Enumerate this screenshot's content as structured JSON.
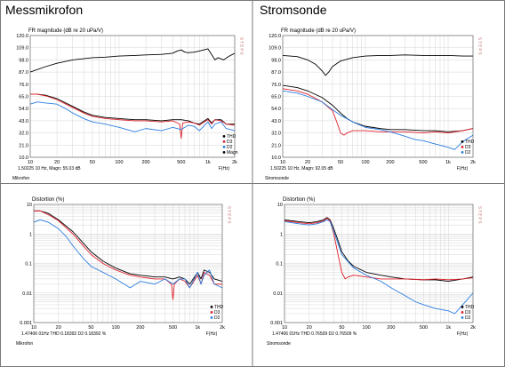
{
  "panel_titles": [
    "Messmikrofon",
    "Stromsonde"
  ],
  "colors": {
    "THD": "#000000",
    "D3": "#e0202a",
    "D2": "#2a7de0",
    "Magn": "#000000",
    "steps": "#c06060"
  },
  "chart_data": [
    {
      "type": "line",
      "title": "FR magnitude (dB re 20 uPa/V)",
      "xlabel": "F(Hz)",
      "ylabel": "",
      "xscale": "log",
      "xlim": [
        10,
        2000
      ],
      "ylim": [
        10,
        120
      ],
      "xticks": [
        10,
        20,
        50,
        100,
        200,
        500,
        1000,
        2000
      ],
      "xtick_labels": [
        "10",
        "20",
        "50",
        "100",
        "200",
        "500",
        "1k",
        "2k"
      ],
      "yticks": [
        10,
        21.0,
        32.0,
        43.0,
        54.0,
        65.0,
        76.0,
        87.0,
        98.0,
        109.0,
        120.0
      ],
      "ytick_labels": [
        "10.0",
        "21.0",
        "32.0",
        "43.0",
        "54.0",
        "65.0",
        "76.0",
        "87.0",
        "98.0",
        "109.0",
        "120.0"
      ],
      "cursor_readout": "1.50225 10 Hz, Magn: 55.03 dB",
      "footer": "Mikrofon",
      "steps_label": "S T E P S",
      "legend": [
        "THD",
        "D3",
        "D2",
        "Magn"
      ],
      "series": [
        {
          "name": "Magn",
          "x": [
            10,
            15,
            20,
            30,
            50,
            70,
            100,
            150,
            200,
            300,
            400,
            450,
            500,
            550,
            600,
            700,
            800,
            1000,
            1200,
            1300,
            1500,
            1700,
            2000
          ],
          "y": [
            87,
            92,
            95,
            98,
            100,
            100.5,
            101.5,
            102,
            102.5,
            103,
            104,
            106,
            107,
            105,
            104.5,
            105,
            106,
            108,
            98,
            100,
            98,
            101,
            104
          ]
        },
        {
          "name": "THD",
          "x": [
            10,
            12,
            15,
            20,
            30,
            40,
            50,
            70,
            100,
            150,
            200,
            300,
            400,
            500,
            600,
            700,
            800,
            1000,
            1100,
            1200,
            1400,
            1600,
            2000
          ],
          "y": [
            67,
            67,
            66,
            63,
            56,
            51,
            48,
            46,
            45,
            44,
            44,
            43,
            44,
            44,
            43,
            41,
            40,
            45,
            41,
            44,
            44,
            40,
            40
          ]
        },
        {
          "name": "D3",
          "x": [
            10,
            12,
            15,
            20,
            30,
            40,
            50,
            70,
            100,
            150,
            200,
            300,
            400,
            480,
            500,
            520,
            600,
            700,
            800,
            1000,
            1100,
            1200,
            1400,
            1600,
            2000
          ],
          "y": [
            67,
            67,
            65.5,
            62,
            55,
            50,
            47,
            45,
            44,
            43,
            43,
            42,
            43,
            40,
            27,
            41,
            42,
            41,
            39,
            44,
            40,
            44,
            43,
            40,
            39
          ]
        },
        {
          "name": "D2",
          "x": [
            10,
            12,
            15,
            20,
            25,
            30,
            40,
            50,
            70,
            100,
            150,
            200,
            300,
            400,
            500,
            600,
            700,
            800,
            1000,
            1100,
            1200,
            1400,
            1600,
            2000
          ],
          "y": [
            58,
            60,
            59,
            58,
            54,
            50,
            45,
            42,
            40,
            37,
            33,
            36,
            34,
            37,
            35,
            39,
            38,
            34,
            42,
            36,
            40,
            42,
            36,
            34
          ]
        }
      ]
    },
    {
      "type": "line",
      "title": "FR magnitude (dB re 20 uPa/V)",
      "xlabel": "F(Hz)",
      "ylabel": "",
      "xscale": "log",
      "xlim": [
        10,
        2000
      ],
      "ylim": [
        10,
        120
      ],
      "xticks": [
        10,
        20,
        50,
        100,
        200,
        500,
        1000,
        2000
      ],
      "xtick_labels": [
        "10",
        "20",
        "50",
        "100",
        "200",
        "500",
        "1k",
        "2k"
      ],
      "yticks": [
        10,
        21.0,
        32.0,
        43.0,
        54.0,
        65.0,
        76.0,
        87.0,
        98.0,
        109.0,
        120.0
      ],
      "ytick_labels": [
        "10.0",
        "21.0",
        "32.0",
        "43.0",
        "54.0",
        "65.0",
        "76.0",
        "87.0",
        "98.0",
        "109.0",
        "120.0"
      ],
      "cursor_readout": "1.50225 10 Hz, Magn: 92.05 dB",
      "footer": "Stromsonde",
      "steps_label": "S T E P S",
      "legend": [
        "THD",
        "D3",
        "D2"
      ],
      "series": [
        {
          "name": "Magn",
          "x": [
            10,
            15,
            20,
            25,
            30,
            33,
            36,
            40,
            50,
            70,
            100,
            150,
            200,
            300,
            500,
            700,
            1000,
            1500,
            2000
          ],
          "y": [
            102,
            101,
            98,
            94,
            88,
            84,
            87,
            92,
            97,
            100,
            101.5,
            102,
            102,
            102.5,
            102,
            102,
            102,
            101.5,
            101.5
          ]
        },
        {
          "name": "THD",
          "x": [
            10,
            15,
            20,
            30,
            40,
            50,
            60,
            70,
            100,
            150,
            200,
            300,
            500,
            700,
            1000,
            1500,
            2000
          ],
          "y": [
            75,
            73,
            70,
            64,
            57,
            50,
            45,
            42,
            38,
            36,
            35,
            35,
            34,
            34,
            33,
            34,
            36
          ]
        },
        {
          "name": "D3",
          "x": [
            10,
            15,
            20,
            30,
            40,
            45,
            50,
            55,
            60,
            70,
            100,
            150,
            200,
            300,
            500,
            700,
            1000,
            1500,
            2000
          ],
          "y": [
            72,
            70,
            67,
            60,
            52,
            42,
            32,
            30,
            32,
            34,
            34,
            33,
            33,
            33,
            32,
            33,
            32,
            34,
            36
          ]
        },
        {
          "name": "D2",
          "x": [
            10,
            15,
            20,
            30,
            40,
            50,
            70,
            100,
            150,
            200,
            300,
            400,
            500,
            700,
            1000,
            1200,
            1500,
            2000
          ],
          "y": [
            70,
            68,
            65,
            60,
            53,
            48,
            42,
            37,
            35,
            33,
            29,
            26,
            25,
            22,
            19,
            17,
            24,
            30
          ]
        }
      ]
    },
    {
      "type": "line",
      "title": "Distortion (%)",
      "xlabel": "F(Hz)",
      "ylabel": "",
      "xscale": "log",
      "yscale": "log",
      "xlim": [
        10,
        2000
      ],
      "ylim": [
        0.001,
        10
      ],
      "xticks": [
        10,
        20,
        50,
        100,
        200,
        500,
        1000,
        2000
      ],
      "xtick_labels": [
        "10",
        "20",
        "50",
        "100",
        "200",
        "500",
        "1k",
        "2k"
      ],
      "yticks": [
        0.001,
        0.01,
        0.1,
        1,
        10
      ],
      "ytick_labels": [
        "0.001",
        "0.01",
        "0.1",
        "1",
        "10"
      ],
      "cursor_readout": "1.47406 01Hz  THD 0.18392  D2 0.18392  %",
      "footer": "Mikrofon",
      "steps_label": "S T E P S",
      "legend": [
        "THD",
        "D3",
        "D2"
      ],
      "series": [
        {
          "name": "THD",
          "x": [
            10,
            12,
            15,
            20,
            30,
            40,
            50,
            70,
            100,
            150,
            200,
            300,
            400,
            500,
            600,
            700,
            800,
            1000,
            1100,
            1200,
            1400,
            1600,
            2000
          ],
          "y": [
            6,
            6,
            5,
            3,
            1.2,
            0.5,
            0.25,
            0.12,
            0.07,
            0.045,
            0.04,
            0.035,
            0.035,
            0.03,
            0.035,
            0.03,
            0.02,
            0.05,
            0.03,
            0.06,
            0.05,
            0.03,
            0.025
          ]
        },
        {
          "name": "D3",
          "x": [
            10,
            12,
            15,
            20,
            30,
            40,
            50,
            70,
            100,
            150,
            200,
            300,
            400,
            480,
            500,
            520,
            600,
            700,
            800,
            1000,
            1100,
            1200,
            1400,
            1600,
            2000
          ],
          "y": [
            6,
            6,
            4.5,
            2.8,
            1.0,
            0.4,
            0.2,
            0.1,
            0.06,
            0.04,
            0.035,
            0.03,
            0.03,
            0.02,
            0.006,
            0.02,
            0.03,
            0.025,
            0.015,
            0.04,
            0.02,
            0.05,
            0.04,
            0.02,
            0.02
          ]
        },
        {
          "name": "D2",
          "x": [
            10,
            12,
            15,
            20,
            25,
            30,
            40,
            50,
            70,
            100,
            150,
            200,
            300,
            400,
            500,
            600,
            700,
            800,
            1000,
            1100,
            1200,
            1400,
            1600,
            2000
          ],
          "y": [
            2.5,
            3,
            2.5,
            1.5,
            0.8,
            0.4,
            0.15,
            0.08,
            0.05,
            0.03,
            0.015,
            0.025,
            0.02,
            0.03,
            0.02,
            0.03,
            0.03,
            0.015,
            0.05,
            0.02,
            0.04,
            0.06,
            0.02,
            0.015
          ]
        }
      ]
    },
    {
      "type": "line",
      "title": "Distortion (%)",
      "xlabel": "F(Hz)",
      "ylabel": "",
      "xscale": "log",
      "yscale": "log",
      "xlim": [
        10,
        2000
      ],
      "ylim": [
        0.001,
        10
      ],
      "xticks": [
        10,
        20,
        50,
        100,
        200,
        500,
        1000,
        2000
      ],
      "xtick_labels": [
        "10",
        "20",
        "50",
        "100",
        "200",
        "500",
        "1k",
        "2k"
      ],
      "yticks": [
        0.001,
        0.01,
        0.1,
        1,
        10
      ],
      "ytick_labels": [
        "0.001",
        "0.01",
        "0.1",
        "1",
        "10"
      ],
      "cursor_readout": "1.47406 01Hz  THD 0.76509  D2 0.76509  %",
      "footer": "Stromsonde",
      "steps_label": "S T E P S",
      "legend": [
        "THD",
        "D3",
        "D2"
      ],
      "series": [
        {
          "name": "THD",
          "x": [
            10,
            15,
            20,
            25,
            30,
            33,
            36,
            40,
            45,
            50,
            60,
            70,
            100,
            150,
            200,
            300,
            500,
            700,
            1000,
            1500,
            2000
          ],
          "y": [
            3,
            2.6,
            2.4,
            2.6,
            3,
            3.6,
            3,
            1.5,
            0.6,
            0.25,
            0.12,
            0.08,
            0.05,
            0.04,
            0.035,
            0.03,
            0.028,
            0.028,
            0.025,
            0.03,
            0.035
          ]
        },
        {
          "name": "D3",
          "x": [
            10,
            15,
            20,
            25,
            30,
            33,
            36,
            40,
            45,
            50,
            55,
            60,
            70,
            100,
            150,
            200,
            300,
            500,
            700,
            1000,
            1500,
            2000
          ],
          "y": [
            2.8,
            2.4,
            2.2,
            2.4,
            2.8,
            3.4,
            2.8,
            1.0,
            0.2,
            0.05,
            0.03,
            0.035,
            0.04,
            0.035,
            0.03,
            0.03,
            0.03,
            0.028,
            0.03,
            0.028,
            0.03,
            0.033
          ]
        },
        {
          "name": "D2",
          "x": [
            10,
            15,
            20,
            25,
            30,
            33,
            36,
            40,
            50,
            70,
            100,
            150,
            200,
            300,
            400,
            500,
            700,
            1000,
            1200,
            1500,
            2000
          ],
          "y": [
            2.6,
            2.2,
            2.0,
            2.2,
            2.6,
            3.0,
            2.6,
            1.2,
            0.2,
            0.07,
            0.04,
            0.025,
            0.015,
            0.008,
            0.005,
            0.004,
            0.003,
            0.0025,
            0.002,
            0.004,
            0.01
          ]
        }
      ]
    }
  ]
}
